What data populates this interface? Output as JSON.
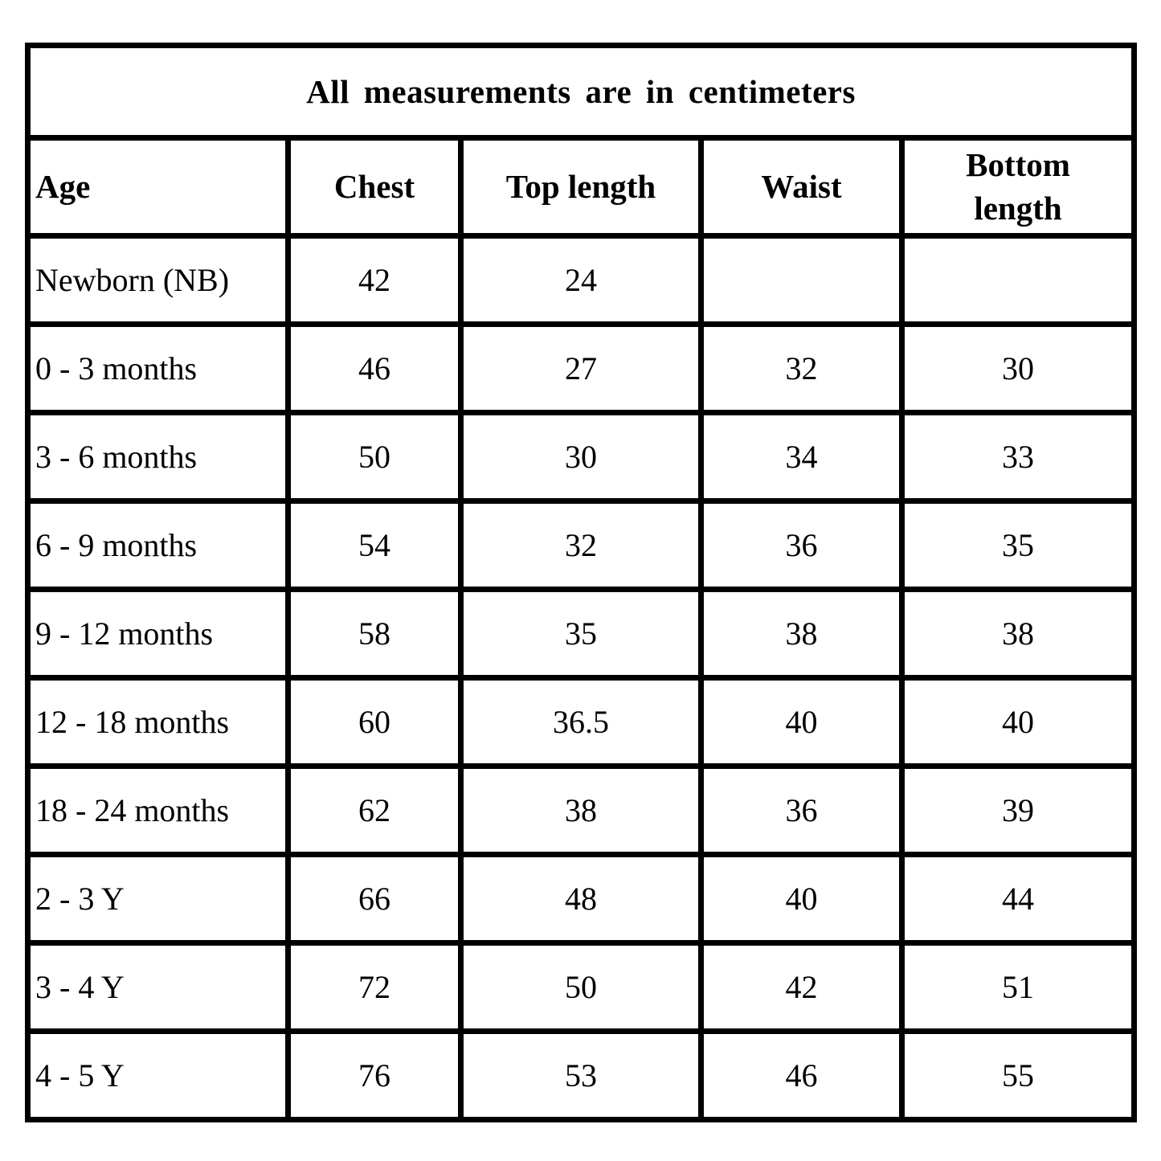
{
  "chart_data": {
    "type": "table",
    "title": "All measurements are in centimeters",
    "columns": [
      "Age",
      "Chest",
      "Top length",
      "Waist",
      "Bottom length"
    ],
    "rows": [
      [
        "Newborn (NB)",
        "42",
        "24",
        "",
        ""
      ],
      [
        "0 - 3 months",
        "46",
        "27",
        "32",
        "30"
      ],
      [
        "3 - 6 months",
        "50",
        "30",
        "34",
        "33"
      ],
      [
        "6 - 9 months",
        "54",
        "32",
        "36",
        "35"
      ],
      [
        "9 - 12 months",
        "58",
        "35",
        "38",
        "38"
      ],
      [
        "12 - 18 months",
        "60",
        "36.5",
        "40",
        "40"
      ],
      [
        "18 - 24 months",
        "62",
        "38",
        "36",
        "39"
      ],
      [
        "2 - 3 Y",
        "66",
        "48",
        "40",
        "44"
      ],
      [
        "3 - 4 Y",
        "72",
        "50",
        "42",
        "51"
      ],
      [
        "4 - 5 Y",
        "76",
        "53",
        "46",
        "55"
      ]
    ],
    "layout": {
      "grid": "on",
      "border_color": "#000000",
      "background_color": "#ffffff"
    }
  }
}
